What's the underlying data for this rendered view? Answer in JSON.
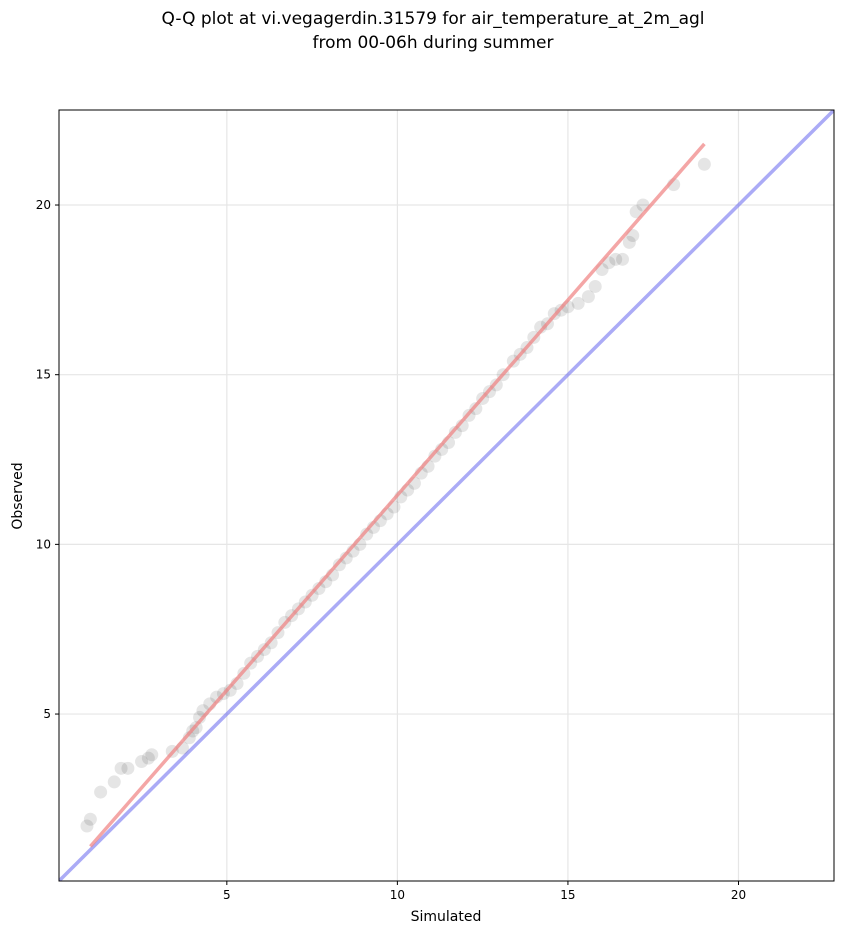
{
  "chart_data": {
    "type": "scatter",
    "title": "Q-Q plot at vi.vegagerdin.31579 for air_temperature_at_2m_agl",
    "subtitle": "from 00-06h during summer",
    "xlabel": "Simulated",
    "ylabel": "Observed",
    "xlim": [
      0.08,
      22.8
    ],
    "ylim": [
      0.08,
      22.8
    ],
    "xticks": [
      5,
      10,
      15,
      20
    ],
    "yticks": [
      5,
      10,
      15,
      20
    ],
    "xtick_labels": [
      "5",
      "10",
      "15",
      "20"
    ],
    "ytick_labels": [
      "5",
      "10",
      "15",
      "20"
    ],
    "grid": true,
    "legend": "none",
    "colors": {
      "points": "#000000",
      "fit_line": "#f08080",
      "identity_line": "#6666ee",
      "grid": "#e6e6e6"
    },
    "points_x": [
      0.9,
      1.0,
      1.3,
      1.7,
      1.9,
      2.1,
      2.5,
      2.7,
      2.8,
      3.4,
      3.7,
      3.9,
      4.0,
      4.1,
      4.2,
      4.3,
      4.5,
      4.7,
      4.9,
      5.1,
      5.3,
      5.5,
      5.7,
      5.9,
      6.1,
      6.3,
      6.5,
      6.7,
      6.9,
      7.1,
      7.3,
      7.5,
      7.7,
      7.9,
      8.1,
      8.3,
      8.5,
      8.7,
      8.9,
      9.1,
      9.3,
      9.5,
      9.7,
      9.9,
      10.1,
      10.3,
      10.5,
      10.7,
      10.9,
      11.1,
      11.3,
      11.5,
      11.7,
      11.9,
      12.1,
      12.3,
      12.5,
      12.7,
      12.9,
      13.1,
      13.4,
      13.6,
      13.8,
      14.0,
      14.2,
      14.4,
      14.6,
      14.8,
      15.0,
      15.3,
      15.6,
      15.8,
      16.0,
      16.2,
      16.4,
      16.6,
      16.8,
      16.9,
      17.0,
      17.2,
      18.1,
      19.0
    ],
    "points_y": [
      1.7,
      1.9,
      2.7,
      3.0,
      3.4,
      3.4,
      3.6,
      3.7,
      3.8,
      3.9,
      4.0,
      4.3,
      4.5,
      4.6,
      4.9,
      5.1,
      5.3,
      5.5,
      5.6,
      5.7,
      5.9,
      6.2,
      6.5,
      6.7,
      6.9,
      7.1,
      7.4,
      7.7,
      7.9,
      8.1,
      8.3,
      8.5,
      8.7,
      8.9,
      9.1,
      9.4,
      9.6,
      9.8,
      10.0,
      10.3,
      10.5,
      10.7,
      10.9,
      11.1,
      11.4,
      11.6,
      11.8,
      12.1,
      12.3,
      12.6,
      12.8,
      13.0,
      13.3,
      13.5,
      13.8,
      14.0,
      14.3,
      14.5,
      14.7,
      15.0,
      15.4,
      15.6,
      15.8,
      16.1,
      16.4,
      16.5,
      16.8,
      16.9,
      17.0,
      17.1,
      17.3,
      17.6,
      18.1,
      18.3,
      18.4,
      18.4,
      18.9,
      19.1,
      19.8,
      20.0,
      20.6,
      21.2
    ],
    "fit_line": {
      "x": [
        1.0,
        19.0
      ],
      "y": [
        1.1,
        21.8
      ]
    },
    "identity_line": {
      "x": [
        0.08,
        22.8
      ],
      "y": [
        0.08,
        22.8
      ]
    }
  }
}
